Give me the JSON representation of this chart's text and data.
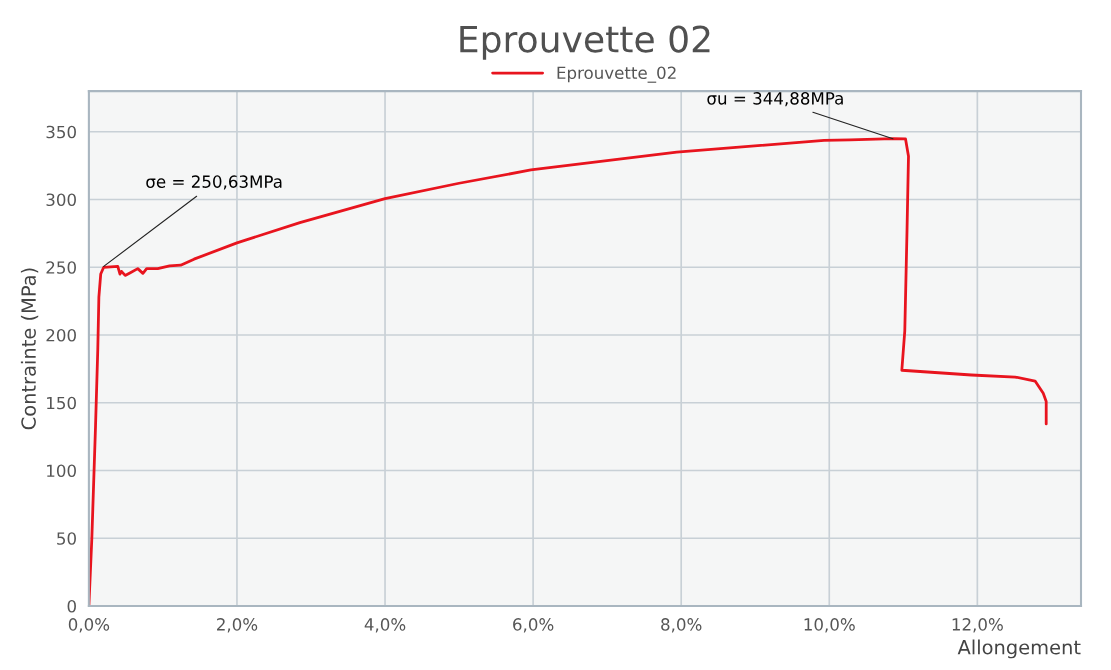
{
  "chart_data": {
    "type": "line",
    "title": "Eprouvette 02",
    "xlabel": "Allongement",
    "ylabel": "Contrainte (MPa)",
    "series": [
      {
        "name": "Eprouvette_02",
        "color": "#e8141e",
        "x": [
          0,
          0.04,
          0.09,
          0.12,
          0.135,
          0.16,
          0.2,
          0.39,
          0.42,
          0.44,
          0.49,
          0.56,
          0.66,
          0.73,
          0.78,
          0.93,
          1.09,
          1.24,
          1.42,
          2.0,
          2.85,
          4.0,
          5.0,
          5.97,
          7.94,
          9.93,
          10.28,
          10.86,
          11.03,
          11.07,
          11.05,
          11.02,
          10.98,
          11.92,
          12.51,
          12.78,
          12.89,
          12.93,
          12.93
        ],
        "values": [
          0,
          50,
          133,
          189,
          228,
          245,
          250,
          250.6,
          245,
          247,
          244,
          246,
          249,
          245.5,
          249,
          249,
          251,
          251.5,
          256,
          268,
          283,
          300.6,
          312,
          321.8,
          335,
          343.7,
          344.1,
          344.88,
          344.7,
          332,
          277,
          203,
          174,
          170.5,
          169,
          166,
          157,
          151,
          134.4
        ]
      }
    ],
    "xlim": [
      0,
      13.4
    ],
    "ylim": [
      0,
      380
    ],
    "xticks": [
      {
        "value": 0,
        "label": "0,0%"
      },
      {
        "value": 2,
        "label": "2,0%"
      },
      {
        "value": 4,
        "label": "4,0%"
      },
      {
        "value": 6,
        "label": "6,0%"
      },
      {
        "value": 8,
        "label": "8,0%"
      },
      {
        "value": 10,
        "label": "10,0%"
      },
      {
        "value": 12,
        "label": "12,0%"
      }
    ],
    "yticks": [
      0,
      50,
      100,
      150,
      200,
      250,
      300,
      350
    ],
    "annotations": [
      {
        "text": "σe = 250,63MPa",
        "x": 0.2,
        "y": 250.63
      },
      {
        "text": "σu = 344,88MPa",
        "x": 10.86,
        "y": 344.88
      }
    ],
    "grid": true,
    "legend": "top",
    "line_style": "solid",
    "marker": "none"
  }
}
